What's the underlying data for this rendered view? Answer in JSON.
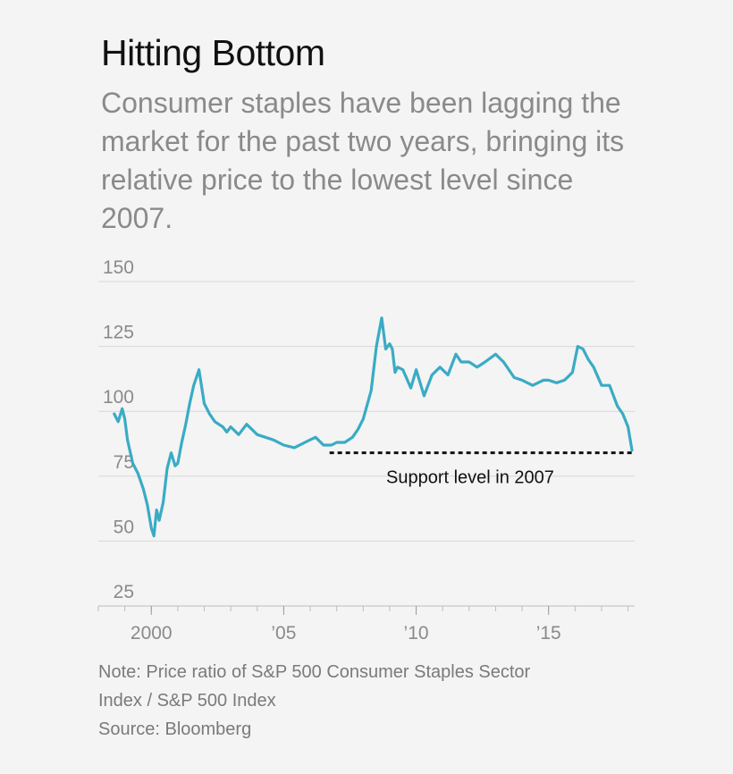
{
  "header": {
    "title": "Hitting Bottom",
    "subtitle": "Consumer staples have been lagging the market for the past two years, bringing its relative price to the lowest level since 2007."
  },
  "footer": {
    "note_line1": "Note: Price ratio of S&P 500 Consumer Staples Sector",
    "note_line2": "Index / S&P 500 Index",
    "source": "Source: Bloomberg"
  },
  "colors": {
    "line": "#3aabc4",
    "grid": "#d8d8d8",
    "tick_text": "#8a8a8a",
    "support": "#111111"
  },
  "chart_data": {
    "type": "line",
    "title": "Hitting Bottom",
    "xlabel": "",
    "ylabel": "",
    "xlim": [
      1998.0,
      2018.25
    ],
    "ylim": [
      25,
      150
    ],
    "grid": true,
    "yticks": [
      150,
      125,
      100,
      75,
      50,
      25
    ],
    "ytick_labels": [
      "150",
      "125",
      "100",
      "75",
      "50",
      "25"
    ],
    "xticks": [
      2000,
      2005,
      2010,
      2015
    ],
    "xtick_labels": [
      "2000",
      "’05",
      "’10",
      "’15"
    ],
    "series": [
      {
        "x": [
          1998.6,
          1998.75,
          1998.9,
          1999.0,
          1999.1,
          1999.3,
          1999.5,
          1999.7,
          1999.85,
          2000.0,
          2000.1,
          2000.2,
          2000.3,
          2000.45,
          2000.6,
          2000.75,
          2000.9,
          2001.0,
          2001.15,
          2001.3,
          2001.45,
          2001.6,
          2001.8,
          2002.0,
          2002.2,
          2002.4,
          2002.55,
          2002.7,
          2002.85,
          2003.0,
          2003.3,
          2003.6,
          2004.0,
          2004.3,
          2004.6,
          2005.0,
          2005.4,
          2005.8,
          2006.2,
          2006.5,
          2006.8,
          2007.0,
          2007.3,
          2007.6,
          2007.8,
          2008.0,
          2008.3,
          2008.5,
          2008.7,
          2008.85,
          2009.0,
          2009.1,
          2009.2,
          2009.3,
          2009.5,
          2009.8,
          2010.0,
          2010.3,
          2010.6,
          2010.9,
          2011.2,
          2011.5,
          2011.7,
          2012.0,
          2012.3,
          2012.6,
          2013.0,
          2013.3,
          2013.7,
          2014.0,
          2014.4,
          2014.8,
          2015.0,
          2015.3,
          2015.6,
          2015.9,
          2016.1,
          2016.3,
          2016.5,
          2016.7,
          2017.0,
          2017.3,
          2017.6,
          2017.8,
          2018.0,
          2018.15
        ],
        "y": [
          99,
          96,
          101,
          97,
          89,
          80,
          76,
          70,
          64,
          55,
          52,
          62,
          58,
          65,
          78,
          84,
          79,
          80,
          88,
          95,
          103,
          110,
          116,
          103,
          99,
          96,
          95,
          94,
          92,
          94,
          91,
          95,
          91,
          90,
          89,
          87,
          86,
          88,
          90,
          87,
          87,
          88,
          88,
          90,
          93,
          97,
          108,
          125,
          136,
          124,
          126,
          124,
          115,
          117,
          116,
          109,
          116,
          106,
          114,
          117,
          114,
          122,
          119,
          119,
          117,
          119,
          122,
          119,
          113,
          112,
          110,
          112,
          112,
          111,
          112,
          115,
          125,
          124,
          120,
          117,
          110,
          110,
          102,
          99,
          94,
          85
        ]
      }
    ],
    "annotations": [
      {
        "text": "Support level in 2007",
        "y": 84,
        "x_start": 2007.0,
        "x_end": 2018.25,
        "style": "dashed"
      }
    ]
  }
}
